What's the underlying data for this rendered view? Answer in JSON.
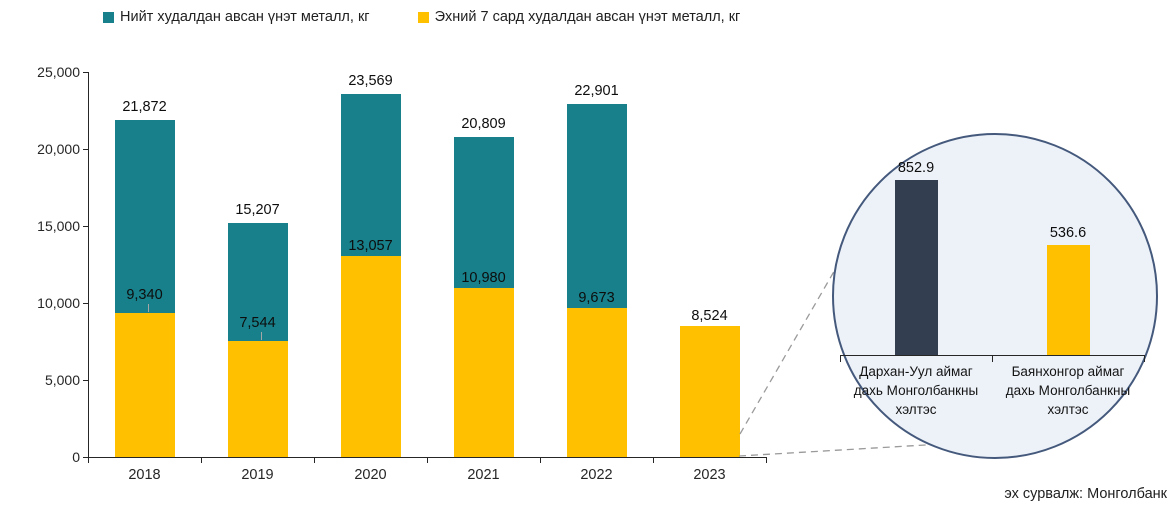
{
  "legend": {
    "items": [
      {
        "label": "Нийт худалдан авсан үнэт металл, кг",
        "color": "#17808A"
      },
      {
        "label": "Эхний 7 сард худалдан авсан үнэт металл, кг",
        "color": "#FFC000"
      }
    ]
  },
  "chart_data": [
    {
      "id": "main",
      "type": "bar",
      "subtype": "overlay-total-vs-partial",
      "title": "",
      "xlabel": "",
      "ylabel": "",
      "categories": [
        "2018",
        "2019",
        "2020",
        "2021",
        "2022",
        "2023"
      ],
      "series": [
        {
          "name": "Нийт худалдан авсан үнэт металл, кг",
          "color": "#17808A",
          "values": [
            21872,
            15207,
            23569,
            20809,
            22901,
            null
          ]
        },
        {
          "name": "Эхний 7 сард худалдан авсан үнэт металл, кг",
          "color": "#FFC000",
          "values": [
            9340,
            7544,
            13057,
            10980,
            9673,
            8524
          ]
        }
      ],
      "data_labels": {
        "totals": [
          "21,872",
          "15,207",
          "23,569",
          "20,809",
          "22,901",
          ""
        ],
        "partials": [
          "9,340",
          "7,544",
          "13,057",
          "10,980",
          "9,673",
          "8,524"
        ]
      },
      "ylim": [
        0,
        25000
      ],
      "yticks": [
        0,
        5000,
        10000,
        15000,
        20000,
        25000
      ],
      "ytick_labels": [
        "0",
        "5,000",
        "10,000",
        "15,000",
        "20,000",
        "25,000"
      ],
      "grid": false,
      "legend_position": "top"
    },
    {
      "id": "inset",
      "type": "bar",
      "shape": "circle-callout-of-2023",
      "categories": [
        "Дархан-Уул аймаг дахь Монголбанкны хэлтэс",
        "Баянхонгор аймаг дахь Монголбанкны хэлтэс"
      ],
      "category_lines": [
        [
          "Дархан-Уул аймаг",
          "дахь Монголбанкны",
          "хэлтэс"
        ],
        [
          "Баянхонгор аймаг",
          "дахь Монголбанкны",
          "хэлтэс"
        ]
      ],
      "values": [
        852.9,
        536.6
      ],
      "value_labels": [
        "852.9",
        "536.6"
      ],
      "colors": [
        "#333F50",
        "#FFC000"
      ],
      "ylim": [
        0,
        900
      ],
      "circle_fill": "#EDF2F9",
      "circle_border": "#44597C"
    }
  ],
  "source_note": "эх сурвалж: Монголбанк"
}
